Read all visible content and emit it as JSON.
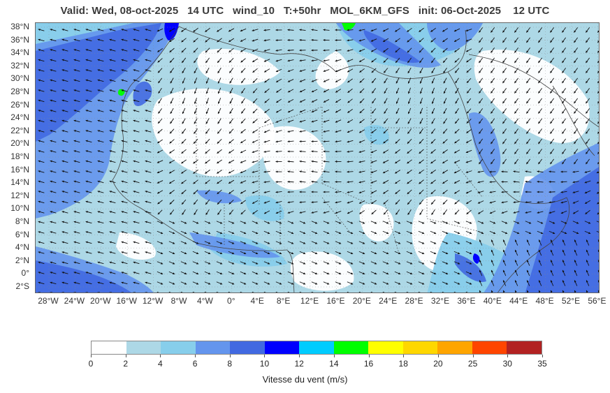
{
  "header": {
    "title": "Valid: Wed, 08-oct-2025   14 UTC   wind_10   T:+50hr   MOL_6KM_GFS   init: 06-Oct-2025    12 UTC"
  },
  "map": {
    "lat_labels": [
      "38°N",
      "36°N",
      "34°N",
      "32°N",
      "30°N",
      "28°N",
      "26°N",
      "24°N",
      "22°N",
      "20°N",
      "18°N",
      "16°N",
      "14°N",
      "12°N",
      "10°N",
      "8°N",
      "6°N",
      "4°N",
      "2°N",
      "0°",
      "2°S"
    ],
    "lon_labels": [
      "28°W",
      "24°W",
      "20°W",
      "16°W",
      "12°W",
      "8°W",
      "4°W",
      "0°",
      "4°E",
      "8°E",
      "12°E",
      "16°E",
      "20°E",
      "24°E",
      "28°E",
      "32°E",
      "36°E",
      "40°E",
      "44°E",
      "48°E",
      "52°E",
      "56°E"
    ],
    "colors": {
      "land_bg": "#ffffff",
      "calm": "#add8e6",
      "light": "#87ceeb",
      "moderate": "#6495ed",
      "strong": "#4169e1",
      "very_strong": "#0000ff",
      "gale": "#00ccff",
      "storm": "#00ff00",
      "arrow": "#111111",
      "border": "#444444"
    }
  },
  "colorbar": {
    "ticks": [
      "0",
      "2",
      "4",
      "6",
      "8",
      "10",
      "12",
      "14",
      "16",
      "18",
      "20",
      "25",
      "30",
      "35"
    ],
    "colors": [
      "#ffffff",
      "#add8e6",
      "#87ceeb",
      "#6495ed",
      "#4169e1",
      "#0000ff",
      "#00ccff",
      "#00ff00",
      "#ffff00",
      "#ffd700",
      "#ffa500",
      "#ff4500",
      "#b22222"
    ],
    "label": "Vitesse du vent (m/s)"
  }
}
